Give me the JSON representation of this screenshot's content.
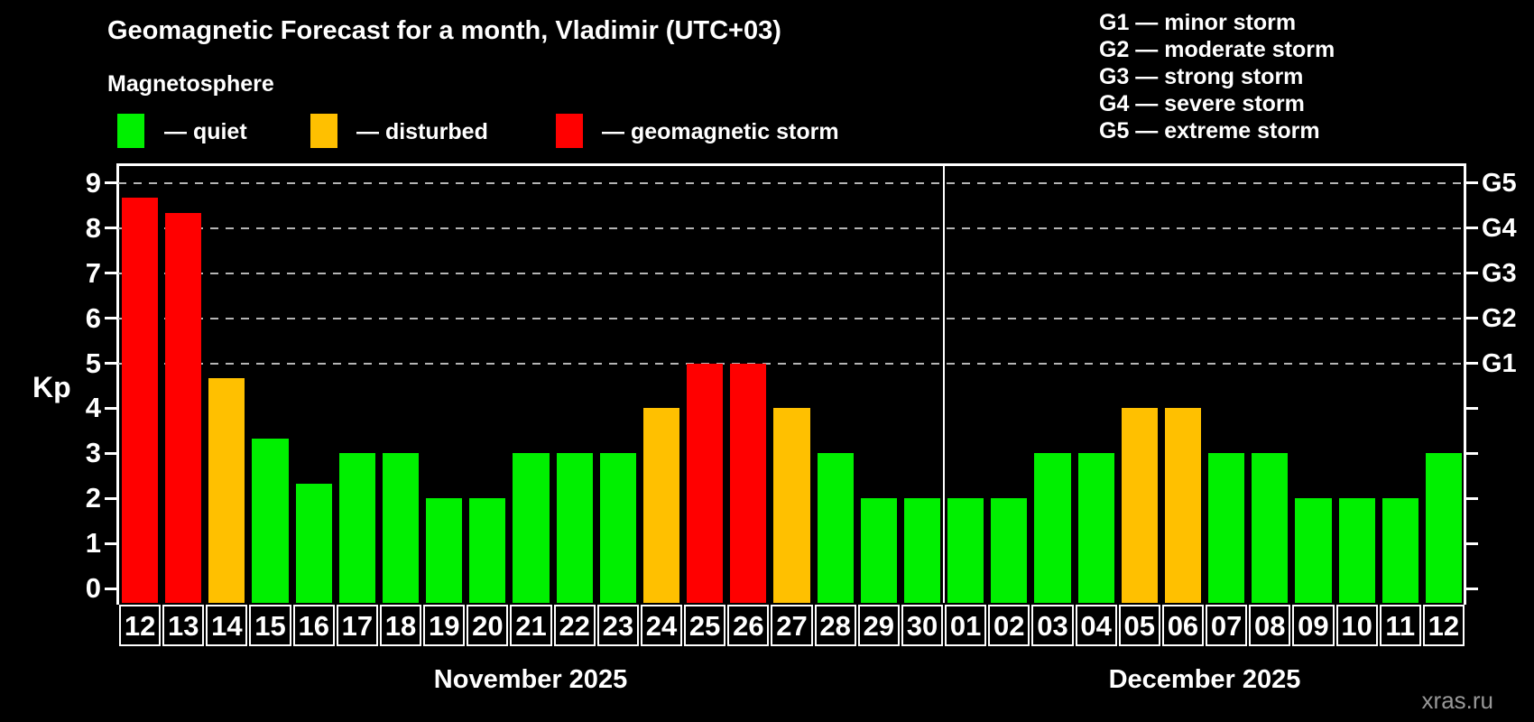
{
  "title": "Geomagnetic Forecast for a month, Vladimir (UTC+03)",
  "subtitle": "Magnetosphere",
  "legend": {
    "quiet": {
      "label": "— quiet",
      "color": "#00f000"
    },
    "disturbed": {
      "label": "— disturbed",
      "color": "#ffc000"
    },
    "storm": {
      "label": "— geomagnetic storm",
      "color": "#ff0000"
    }
  },
  "g_legend": [
    "G1 — minor storm",
    "G2 — moderate storm",
    "G3 — strong storm",
    "G4 — severe storm",
    "G5 — extreme storm"
  ],
  "watermark": "xras.ru",
  "chart_data": {
    "type": "bar",
    "title": "Geomagnetic Forecast for a month, Vladimir (UTC+03)",
    "ylabel": "Kp",
    "ylim": [
      0,
      9.4
    ],
    "yticks": [
      0,
      1,
      2,
      3,
      4,
      5,
      6,
      7,
      8,
      9
    ],
    "gridlines_at_kp": [
      5,
      6,
      7,
      8,
      9
    ],
    "grid_style": "dashed",
    "right_axis_g_levels": [
      {
        "label": "G1",
        "kp": 5
      },
      {
        "label": "G2",
        "kp": 6
      },
      {
        "label": "G3",
        "kp": 7
      },
      {
        "label": "G4",
        "kp": 8
      },
      {
        "label": "G5",
        "kp": 9
      }
    ],
    "status_colors": {
      "quiet": "#00f000",
      "disturbed": "#ffc000",
      "storm": "#ff0000"
    },
    "months": [
      {
        "label": "November 2025",
        "days": [
          {
            "day": "12",
            "kp": 8.67,
            "status": "storm"
          },
          {
            "day": "13",
            "kp": 8.33,
            "status": "storm"
          },
          {
            "day": "14",
            "kp": 4.67,
            "status": "disturbed"
          },
          {
            "day": "15",
            "kp": 3.33,
            "status": "quiet"
          },
          {
            "day": "16",
            "kp": 2.33,
            "status": "quiet"
          },
          {
            "day": "17",
            "kp": 3,
            "status": "quiet"
          },
          {
            "day": "18",
            "kp": 3,
            "status": "quiet"
          },
          {
            "day": "19",
            "kp": 2,
            "status": "quiet"
          },
          {
            "day": "20",
            "kp": 2,
            "status": "quiet"
          },
          {
            "day": "21",
            "kp": 3,
            "status": "quiet"
          },
          {
            "day": "22",
            "kp": 3,
            "status": "quiet"
          },
          {
            "day": "23",
            "kp": 3,
            "status": "quiet"
          },
          {
            "day": "24",
            "kp": 4,
            "status": "disturbed"
          },
          {
            "day": "25",
            "kp": 5,
            "status": "storm"
          },
          {
            "day": "26",
            "kp": 5,
            "status": "storm"
          },
          {
            "day": "27",
            "kp": 4,
            "status": "disturbed"
          },
          {
            "day": "28",
            "kp": 3,
            "status": "quiet"
          },
          {
            "day": "29",
            "kp": 2,
            "status": "quiet"
          },
          {
            "day": "30",
            "kp": 2,
            "status": "quiet"
          }
        ]
      },
      {
        "label": "December 2025",
        "days": [
          {
            "day": "01",
            "kp": 2,
            "status": "quiet"
          },
          {
            "day": "02",
            "kp": 2,
            "status": "quiet"
          },
          {
            "day": "03",
            "kp": 3,
            "status": "quiet"
          },
          {
            "day": "04",
            "kp": 3,
            "status": "quiet"
          },
          {
            "day": "05",
            "kp": 4,
            "status": "disturbed"
          },
          {
            "day": "06",
            "kp": 4,
            "status": "disturbed"
          },
          {
            "day": "07",
            "kp": 3,
            "status": "quiet"
          },
          {
            "day": "08",
            "kp": 3,
            "status": "quiet"
          },
          {
            "day": "09",
            "kp": 2,
            "status": "quiet"
          },
          {
            "day": "10",
            "kp": 2,
            "status": "quiet"
          },
          {
            "day": "11",
            "kp": 2,
            "status": "quiet"
          },
          {
            "day": "12",
            "kp": 3,
            "status": "quiet"
          }
        ]
      }
    ]
  }
}
